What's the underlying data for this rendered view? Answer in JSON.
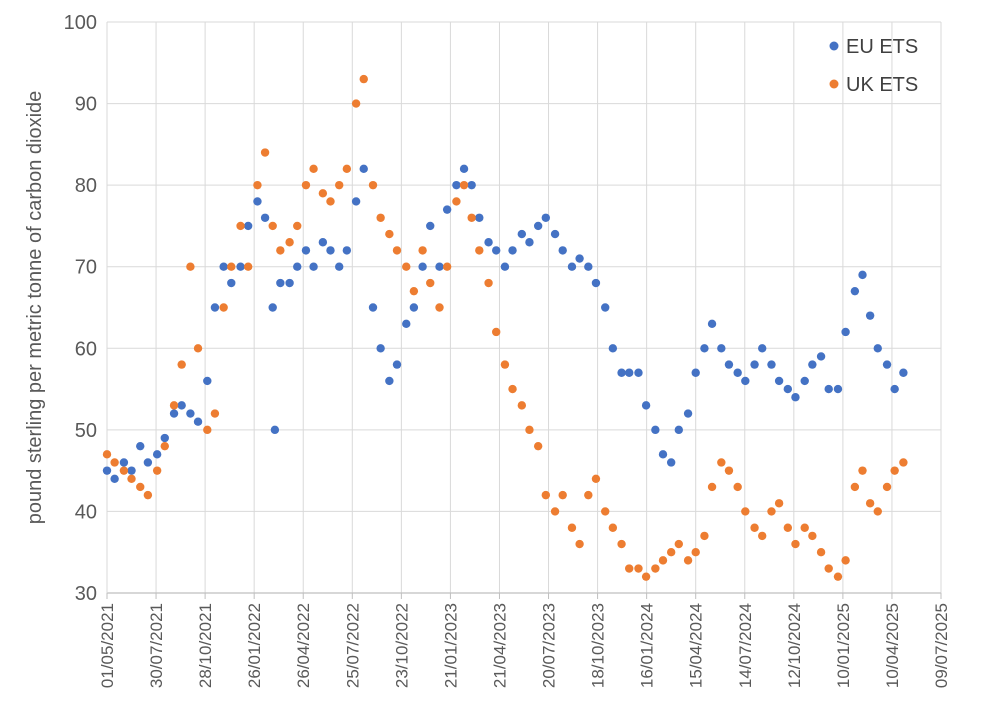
{
  "chart_data": {
    "type": "scatter",
    "title": "",
    "xlabel": "",
    "ylabel": "pound sterling per metric tonne of carbon dioxide",
    "ylim": [
      30,
      100
    ],
    "yticks": [
      30,
      40,
      50,
      60,
      70,
      80,
      90,
      100
    ],
    "xlim": [
      "01/05/2021",
      "09/07/2025"
    ],
    "xtick_labels": [
      "01/05/2021",
      "30/07/2021",
      "28/10/2021",
      "26/01/2022",
      "26/04/2022",
      "25/07/2022",
      "23/10/2022",
      "21/01/2023",
      "21/04/2023",
      "20/07/2023",
      "18/10/2023",
      "16/01/2024",
      "15/04/2024",
      "14/07/2024",
      "12/10/2024",
      "10/01/2025",
      "10/04/2025",
      "09/07/2025"
    ],
    "grid": true,
    "legend": "top-right",
    "series": [
      {
        "name": "EU ETS",
        "color": "#4472C4",
        "points": [
          [
            "01/05/2021",
            45
          ],
          [
            "15/05/2021",
            44
          ],
          [
            "01/06/2021",
            46
          ],
          [
            "15/06/2021",
            45
          ],
          [
            "01/07/2021",
            48
          ],
          [
            "15/07/2021",
            46
          ],
          [
            "01/08/2021",
            47
          ],
          [
            "15/08/2021",
            49
          ],
          [
            "01/09/2021",
            52
          ],
          [
            "15/09/2021",
            53
          ],
          [
            "01/10/2021",
            52
          ],
          [
            "15/10/2021",
            51
          ],
          [
            "01/11/2021",
            56
          ],
          [
            "15/11/2021",
            65
          ],
          [
            "01/12/2021",
            70
          ],
          [
            "15/12/2021",
            68
          ],
          [
            "01/01/2022",
            70
          ],
          [
            "15/01/2022",
            75
          ],
          [
            "01/02/2022",
            78
          ],
          [
            "15/02/2022",
            76
          ],
          [
            "01/03/2022",
            65
          ],
          [
            "05/03/2022",
            50
          ],
          [
            "15/03/2022",
            68
          ],
          [
            "01/04/2022",
            68
          ],
          [
            "15/04/2022",
            70
          ],
          [
            "01/05/2022",
            72
          ],
          [
            "15/05/2022",
            70
          ],
          [
            "01/06/2022",
            73
          ],
          [
            "15/06/2022",
            72
          ],
          [
            "01/07/2022",
            70
          ],
          [
            "15/07/2022",
            72
          ],
          [
            "01/08/2022",
            78
          ],
          [
            "15/08/2022",
            82
          ],
          [
            "01/09/2022",
            65
          ],
          [
            "15/09/2022",
            60
          ],
          [
            "01/10/2022",
            56
          ],
          [
            "15/10/2022",
            58
          ],
          [
            "01/11/2022",
            63
          ],
          [
            "15/11/2022",
            65
          ],
          [
            "01/12/2022",
            70
          ],
          [
            "15/12/2022",
            75
          ],
          [
            "01/01/2023",
            70
          ],
          [
            "15/01/2023",
            77
          ],
          [
            "01/02/2023",
            80
          ],
          [
            "15/02/2023",
            82
          ],
          [
            "01/03/2023",
            80
          ],
          [
            "15/03/2023",
            76
          ],
          [
            "01/04/2023",
            73
          ],
          [
            "15/04/2023",
            72
          ],
          [
            "01/05/2023",
            70
          ],
          [
            "15/05/2023",
            72
          ],
          [
            "01/06/2023",
            74
          ],
          [
            "15/06/2023",
            73
          ],
          [
            "01/07/2023",
            75
          ],
          [
            "15/07/2023",
            76
          ],
          [
            "01/08/2023",
            74
          ],
          [
            "15/08/2023",
            72
          ],
          [
            "01/09/2023",
            70
          ],
          [
            "15/09/2023",
            71
          ],
          [
            "01/10/2023",
            70
          ],
          [
            "15/10/2023",
            68
          ],
          [
            "01/11/2023",
            65
          ],
          [
            "15/11/2023",
            60
          ],
          [
            "01/12/2023",
            57
          ],
          [
            "15/12/2023",
            57
          ],
          [
            "01/01/2024",
            57
          ],
          [
            "15/01/2024",
            53
          ],
          [
            "01/02/2024",
            50
          ],
          [
            "15/02/2024",
            47
          ],
          [
            "01/03/2024",
            46
          ],
          [
            "15/03/2024",
            50
          ],
          [
            "01/04/2024",
            52
          ],
          [
            "15/04/2024",
            57
          ],
          [
            "01/05/2024",
            60
          ],
          [
            "15/05/2024",
            63
          ],
          [
            "01/06/2024",
            60
          ],
          [
            "15/06/2024",
            58
          ],
          [
            "01/07/2024",
            57
          ],
          [
            "15/07/2024",
            56
          ],
          [
            "01/08/2024",
            58
          ],
          [
            "15/08/2024",
            60
          ],
          [
            "01/09/2024",
            58
          ],
          [
            "15/09/2024",
            56
          ],
          [
            "01/10/2024",
            55
          ],
          [
            "15/10/2024",
            54
          ],
          [
            "01/11/2024",
            56
          ],
          [
            "15/11/2024",
            58
          ],
          [
            "01/12/2024",
            59
          ],
          [
            "15/12/2024",
            55
          ],
          [
            "01/01/2025",
            55
          ],
          [
            "15/01/2025",
            62
          ],
          [
            "01/02/2025",
            67
          ],
          [
            "15/02/2025",
            69
          ],
          [
            "01/03/2025",
            64
          ],
          [
            "15/03/2025",
            60
          ],
          [
            "01/04/2025",
            58
          ],
          [
            "15/04/2025",
            55
          ],
          [
            "01/05/2025",
            57
          ]
        ]
      },
      {
        "name": "UK ETS",
        "color": "#ED7D31",
        "points": [
          [
            "01/05/2021",
            47
          ],
          [
            "15/05/2021",
            46
          ],
          [
            "01/06/2021",
            45
          ],
          [
            "15/06/2021",
            44
          ],
          [
            "01/07/2021",
            43
          ],
          [
            "15/07/2021",
            42
          ],
          [
            "01/08/2021",
            45
          ],
          [
            "15/08/2021",
            48
          ],
          [
            "01/09/2021",
            53
          ],
          [
            "15/09/2021",
            58
          ],
          [
            "01/10/2021",
            70
          ],
          [
            "15/10/2021",
            60
          ],
          [
            "01/11/2021",
            50
          ],
          [
            "15/11/2021",
            52
          ],
          [
            "01/12/2021",
            65
          ],
          [
            "15/12/2021",
            70
          ],
          [
            "01/01/2022",
            75
          ],
          [
            "15/01/2022",
            70
          ],
          [
            "01/02/2022",
            80
          ],
          [
            "15/02/2022",
            84
          ],
          [
            "01/03/2022",
            75
          ],
          [
            "15/03/2022",
            72
          ],
          [
            "01/04/2022",
            73
          ],
          [
            "15/04/2022",
            75
          ],
          [
            "01/05/2022",
            80
          ],
          [
            "15/05/2022",
            82
          ],
          [
            "01/06/2022",
            79
          ],
          [
            "15/06/2022",
            78
          ],
          [
            "01/07/2022",
            80
          ],
          [
            "15/07/2022",
            82
          ],
          [
            "01/08/2022",
            90
          ],
          [
            "15/08/2022",
            93
          ],
          [
            "01/09/2022",
            80
          ],
          [
            "15/09/2022",
            76
          ],
          [
            "01/10/2022",
            74
          ],
          [
            "15/10/2022",
            72
          ],
          [
            "01/11/2022",
            70
          ],
          [
            "15/11/2022",
            67
          ],
          [
            "01/12/2022",
            72
          ],
          [
            "15/12/2022",
            68
          ],
          [
            "01/01/2023",
            65
          ],
          [
            "15/01/2023",
            70
          ],
          [
            "01/02/2023",
            78
          ],
          [
            "15/02/2023",
            80
          ],
          [
            "01/03/2023",
            76
          ],
          [
            "15/03/2023",
            72
          ],
          [
            "01/04/2023",
            68
          ],
          [
            "15/04/2023",
            62
          ],
          [
            "01/05/2023",
            58
          ],
          [
            "15/05/2023",
            55
          ],
          [
            "01/06/2023",
            53
          ],
          [
            "15/06/2023",
            50
          ],
          [
            "01/07/2023",
            48
          ],
          [
            "15/07/2023",
            42
          ],
          [
            "01/08/2023",
            40
          ],
          [
            "15/08/2023",
            42
          ],
          [
            "01/09/2023",
            38
          ],
          [
            "15/09/2023",
            36
          ],
          [
            "01/10/2023",
            42
          ],
          [
            "15/10/2023",
            44
          ],
          [
            "01/11/2023",
            40
          ],
          [
            "15/11/2023",
            38
          ],
          [
            "01/12/2023",
            36
          ],
          [
            "15/12/2023",
            33
          ],
          [
            "01/01/2024",
            33
          ],
          [
            "15/01/2024",
            32
          ],
          [
            "01/02/2024",
            33
          ],
          [
            "15/02/2024",
            34
          ],
          [
            "01/03/2024",
            35
          ],
          [
            "15/03/2024",
            36
          ],
          [
            "01/04/2024",
            34
          ],
          [
            "15/04/2024",
            35
          ],
          [
            "01/05/2024",
            37
          ],
          [
            "15/05/2024",
            43
          ],
          [
            "01/06/2024",
            46
          ],
          [
            "15/06/2024",
            45
          ],
          [
            "01/07/2024",
            43
          ],
          [
            "15/07/2024",
            40
          ],
          [
            "01/08/2024",
            38
          ],
          [
            "15/08/2024",
            37
          ],
          [
            "01/09/2024",
            40
          ],
          [
            "15/09/2024",
            41
          ],
          [
            "01/10/2024",
            38
          ],
          [
            "15/10/2024",
            36
          ],
          [
            "01/11/2024",
            38
          ],
          [
            "15/11/2024",
            37
          ],
          [
            "01/12/2024",
            35
          ],
          [
            "15/12/2024",
            33
          ],
          [
            "01/01/2025",
            32
          ],
          [
            "15/01/2025",
            34
          ],
          [
            "01/02/2025",
            43
          ],
          [
            "15/02/2025",
            45
          ],
          [
            "01/03/2025",
            41
          ],
          [
            "15/03/2025",
            40
          ],
          [
            "01/04/2025",
            43
          ],
          [
            "15/04/2025",
            45
          ],
          [
            "01/05/2025",
            46
          ]
        ]
      }
    ]
  }
}
